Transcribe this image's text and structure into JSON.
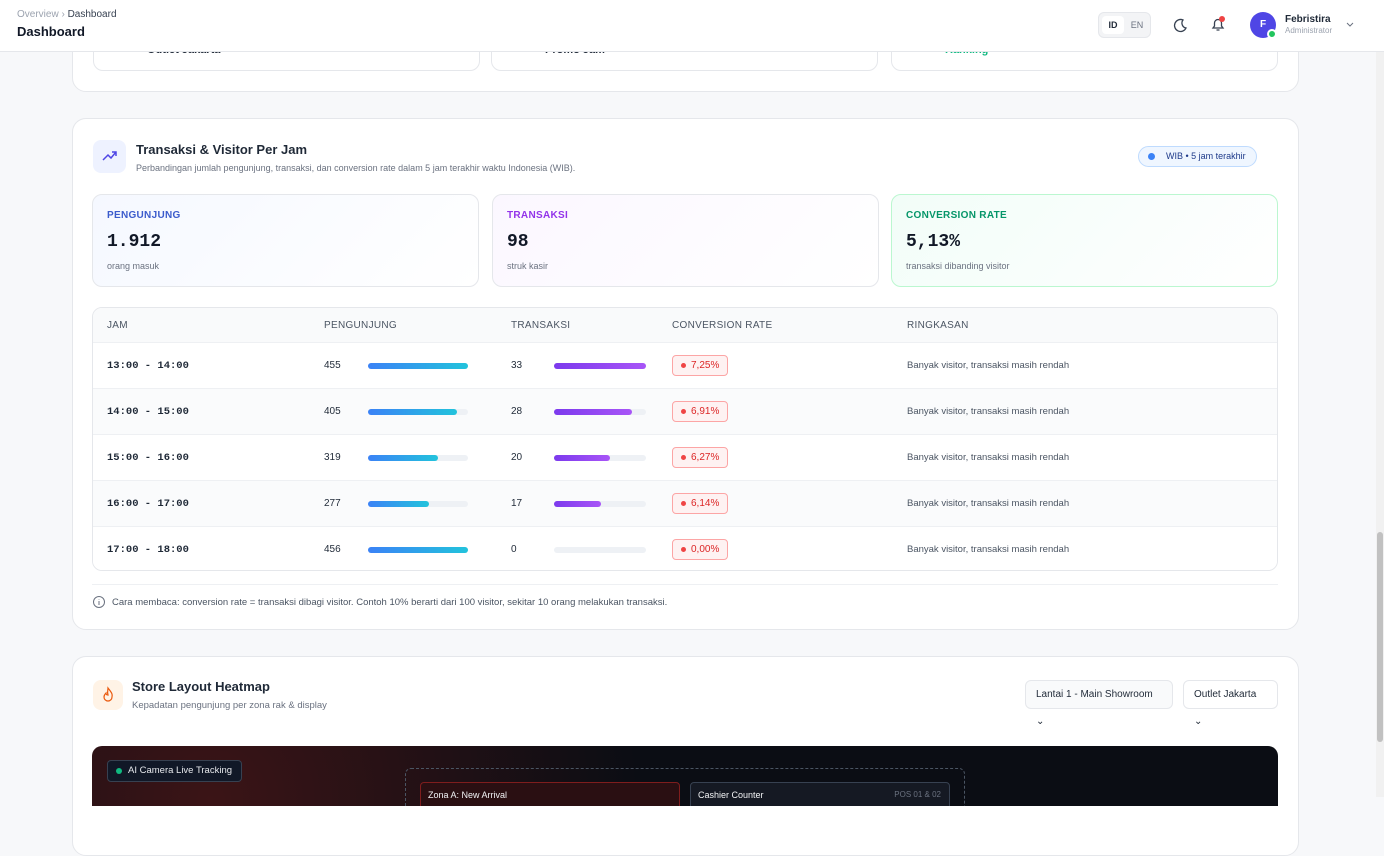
{
  "header": {
    "breadcrumb": [
      "Overview",
      "Dashboard"
    ],
    "title": "Dashboard",
    "languages": [
      "ID",
      "EN"
    ],
    "user": {
      "initial": "F",
      "name": "Febristira",
      "role": "Administrator"
    }
  },
  "top_cards": [
    "Outlet Jakarta",
    "Promo Jam",
    "Ranking"
  ],
  "hourly": {
    "title": "Transaksi & Visitor Per Jam",
    "subtitle": "Perbandingan jumlah pengunjung, transaksi, dan conversion rate dalam 5 jam terakhir waktu Indonesia (WIB).",
    "badge": "WIB • 5 jam terakhir",
    "stats": [
      {
        "label": "PENGUNJUNG",
        "value": "1.912",
        "note": "orang masuk"
      },
      {
        "label": "TRANSAKSI",
        "value": "98",
        "note": "struk kasir"
      },
      {
        "label": "CONVERSION RATE",
        "value": "5,13%",
        "note": "transaksi dibanding visitor"
      }
    ],
    "table": {
      "columns": [
        "JAM",
        "PENGUNJUNG",
        "TRANSAKSI",
        "CONVERSION RATE",
        "RINGKASAN"
      ],
      "rows": [
        {
          "time": "13:00 - 14:00",
          "visitors": 455,
          "transactions": 33,
          "conversion": "7,25%",
          "summary": "Banyak visitor, transaksi masih rendah"
        },
        {
          "time": "14:00 - 15:00",
          "visitors": 405,
          "transactions": 28,
          "conversion": "6,91%",
          "summary": "Banyak visitor, transaksi masih rendah"
        },
        {
          "time": "15:00 - 16:00",
          "visitors": 319,
          "transactions": 20,
          "conversion": "6,27%",
          "summary": "Banyak visitor, transaksi masih rendah"
        },
        {
          "time": "16:00 - 17:00",
          "visitors": 277,
          "transactions": 17,
          "conversion": "6,14%",
          "summary": "Banyak visitor, transaksi masih rendah"
        },
        {
          "time": "17:00 - 18:00",
          "visitors": 456,
          "transactions": 0,
          "conversion": "0,00%",
          "summary": "Banyak visitor, transaksi masih rendah"
        }
      ]
    },
    "note": "Cara membaca: conversion rate = transaksi dibagi visitor. Contoh 10% berarti dari 100 visitor, sekitar 10 orang melakukan transaksi."
  },
  "heatmap": {
    "title": "Store Layout Heatmap",
    "subtitle": "Kepadatan pengunjung per zona rak & display",
    "floor": "Lantai 1 - Main Showroom",
    "outlet": "Outlet Jakarta",
    "live": "AI Camera Live Tracking",
    "zones": [
      {
        "name": "Zona A: New Arrival"
      },
      {
        "name": "Cashier Counter",
        "tag": "POS 01 & 02"
      }
    ]
  }
}
